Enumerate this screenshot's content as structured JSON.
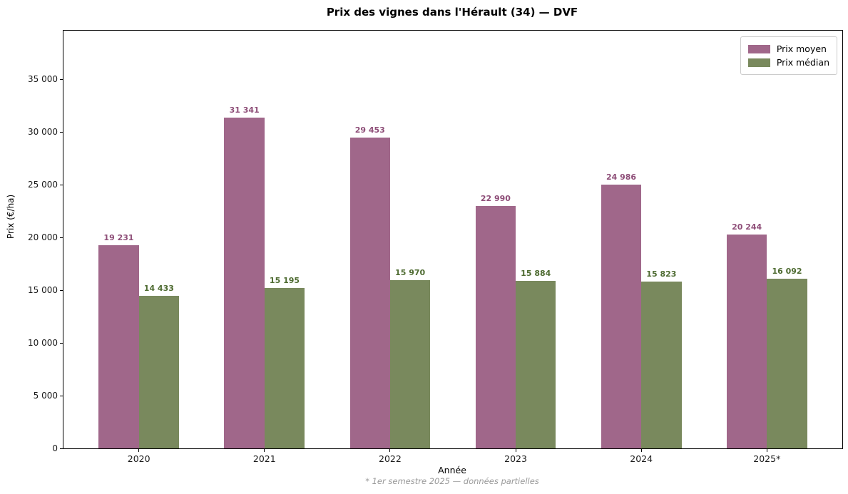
{
  "chart_data": {
    "type": "bar",
    "title": "Prix des vignes dans l'Hérault (34) — DVF",
    "xlabel": "Année",
    "ylabel": "Prix (€/ha)",
    "footnote": "* 1er semestre 2025 — données partielles",
    "categories": [
      "2020",
      "2021",
      "2022",
      "2023",
      "2024",
      "2025*"
    ],
    "series": [
      {
        "name": "Prix moyen",
        "color": "#a0678a",
        "label_color": "#8e4e78",
        "values": [
          19231,
          31341,
          29453,
          22990,
          24986,
          20244
        ],
        "labels": [
          "19 231",
          "31 341",
          "29 453",
          "22 990",
          "24 986",
          "20 244"
        ]
      },
      {
        "name": "Prix médian",
        "color": "#79895d",
        "label_color": "#4e6b31",
        "values": [
          14433,
          15195,
          15970,
          15884,
          15823,
          16092
        ],
        "labels": [
          "14 433",
          "15 195",
          "15 970",
          "15 884",
          "15 823",
          "16 092"
        ]
      }
    ],
    "ylim": [
      0,
      39600
    ],
    "yticks": [
      0,
      5000,
      10000,
      15000,
      20000,
      25000,
      30000,
      35000
    ],
    "ytick_labels": [
      "0",
      "5 000",
      "10 000",
      "15 000",
      "20 000",
      "25 000",
      "30 000",
      "35 000"
    ],
    "legend_position": "upper right",
    "grid": false
  }
}
